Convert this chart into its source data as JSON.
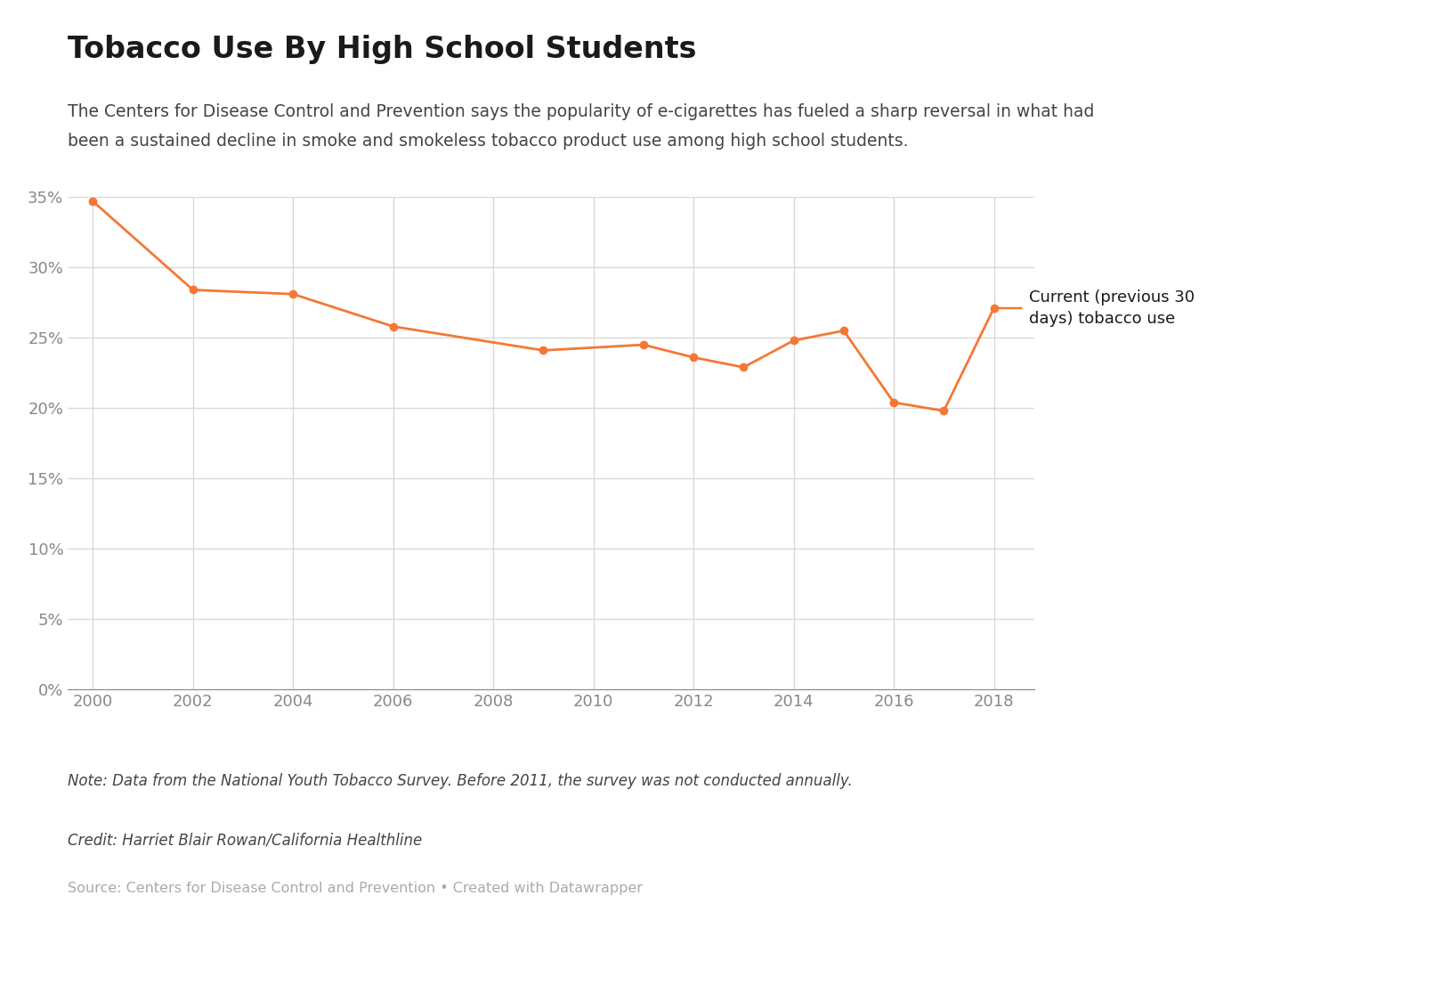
{
  "title": "Tobacco Use By High School Students",
  "subtitle_line1": "The Centers for Disease Control and Prevention says the popularity of e-cigarettes has fueled a sharp reversal in what had",
  "subtitle_line2": "been a sustained decline in smoke and smokeless tobacco product use among high school students.",
  "years": [
    2000,
    2002,
    2004,
    2006,
    2009,
    2011,
    2012,
    2013,
    2014,
    2015,
    2016,
    2017,
    2018
  ],
  "values": [
    0.347,
    0.284,
    0.281,
    0.258,
    0.241,
    0.245,
    0.236,
    0.229,
    0.248,
    0.255,
    0.204,
    0.198,
    0.271
  ],
  "line_color": "#f47835",
  "marker_color": "#f47835",
  "background_color": "#ffffff",
  "grid_color": "#d9d9d9",
  "axis_color": "#888888",
  "tick_label_color": "#888888",
  "title_color": "#1a1a1a",
  "subtitle_color": "#444444",
  "note_text": "Note: Data from the National Youth Tobacco Survey. Before 2011, the survey was not conducted annually.",
  "credit_text": "Credit: Harriet Blair Rowan/California Healthline",
  "source_text": "Source: Centers for Disease Control and Prevention • Created with Datawrapper",
  "legend_label": "Current (previous 30\ndays) tobacco use",
  "ylim": [
    0.0,
    0.35
  ],
  "yticks": [
    0.0,
    0.05,
    0.1,
    0.15,
    0.2,
    0.25,
    0.3,
    0.35
  ],
  "xticks": [
    2000,
    2002,
    2004,
    2006,
    2008,
    2010,
    2012,
    2014,
    2016,
    2018
  ],
  "title_fontsize": 24,
  "subtitle_fontsize": 13.5,
  "tick_fontsize": 13,
  "note_fontsize": 12,
  "legend_fontsize": 13
}
